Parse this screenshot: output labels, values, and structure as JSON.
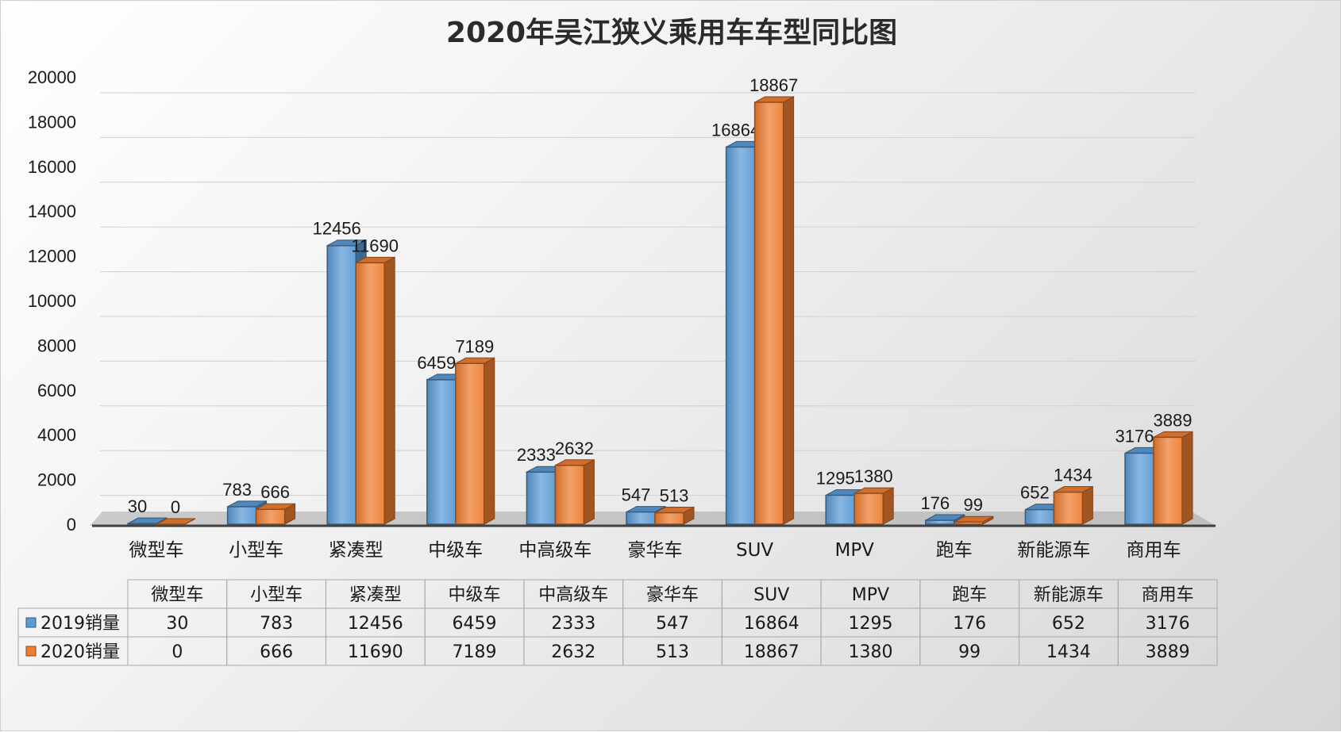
{
  "chart_data": {
    "type": "bar",
    "title": "2020年吴江狭义乘用车车型同比图",
    "categories": [
      "微型车",
      "小型车",
      "紧凑型",
      "中级车",
      "中高级车",
      "豪华车",
      "SUV",
      "MPV",
      "跑车",
      "新能源车",
      "商用车"
    ],
    "series": [
      {
        "name": "2019销量",
        "values": [
          30,
          783,
          12456,
          6459,
          2333,
          547,
          16864,
          1295,
          176,
          652,
          3176
        ],
        "color": "#5b9bd5"
      },
      {
        "name": "2020销量",
        "values": [
          0,
          666,
          11690,
          7189,
          2632,
          513,
          18867,
          1380,
          99,
          1434,
          3889
        ],
        "color": "#ed7d31"
      }
    ],
    "ylim": [
      0,
      20000
    ],
    "yticks": [
      "0",
      "2000",
      "4000",
      "6000",
      "8000",
      "10000",
      "12000",
      "14000",
      "16000",
      "18000",
      "20000"
    ],
    "grid": true,
    "legend": "data-table",
    "style": "3d-clustered-column"
  }
}
